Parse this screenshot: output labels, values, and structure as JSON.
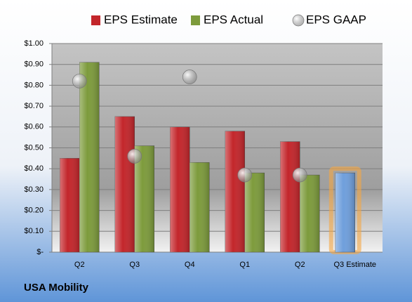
{
  "chart_data": {
    "type": "bar",
    "title": "USA Mobility",
    "categories": [
      "Q2",
      "Q3",
      "Q4",
      "Q1",
      "Q2",
      "Q3 Estimate"
    ],
    "series": [
      {
        "name": "EPS Estimate",
        "color": "#c3262b",
        "values": [
          0.45,
          0.65,
          0.6,
          0.58,
          0.53,
          0.38
        ],
        "colors": [
          "#c3262b",
          "#c3262b",
          "#c3262b",
          "#c3262b",
          "#c3262b",
          "#6f9fdc"
        ]
      },
      {
        "name": "EPS Actual",
        "color": "#7d9b3c",
        "values": [
          0.91,
          0.51,
          0.43,
          0.38,
          0.37,
          null
        ]
      },
      {
        "name": "EPS GAAP",
        "color": "#9a9a9a",
        "marker": "circle",
        "values": [
          0.82,
          0.46,
          0.84,
          0.37,
          0.37,
          null
        ]
      }
    ],
    "ylim": [
      0,
      1
    ],
    "yticks": [
      {
        "value": 0,
        "label": "$-"
      },
      {
        "value": 0.1,
        "label": "$0.10"
      },
      {
        "value": 0.2,
        "label": "$0.20"
      },
      {
        "value": 0.3,
        "label": "$0.30"
      },
      {
        "value": 0.4,
        "label": "$0.40"
      },
      {
        "value": 0.5,
        "label": "$0.50"
      },
      {
        "value": 0.6,
        "label": "$0.60"
      },
      {
        "value": 0.7,
        "label": "$0.70"
      },
      {
        "value": 0.8,
        "label": "$0.80"
      },
      {
        "value": 0.9,
        "label": "$0.90"
      },
      {
        "value": 1,
        "label": "$1.00"
      }
    ],
    "grid": true,
    "legend": "top"
  }
}
